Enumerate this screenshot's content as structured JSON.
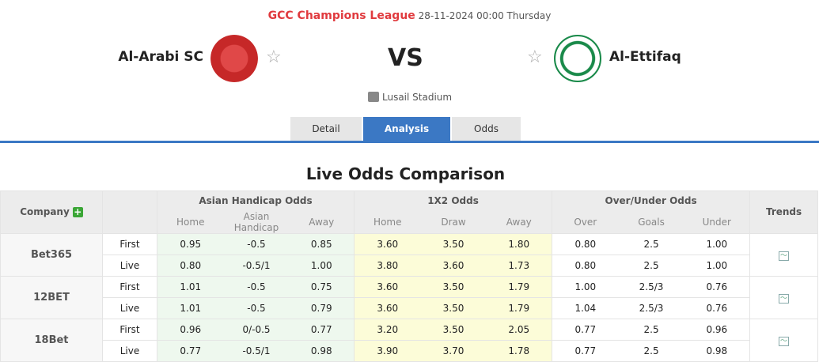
{
  "match": {
    "league": "GCC Champions League",
    "datetime": "28-11-2024 00:00 Thursday",
    "home": "Al-Arabi SC",
    "away": "Al-Ettifaq",
    "vs": "VS",
    "venue": "Lusail Stadium",
    "home_color": "#d32f2f",
    "away_color": "#1a8a4a"
  },
  "tabs": [
    {
      "label": "Detail"
    },
    {
      "label": "Analysis",
      "active": true
    },
    {
      "label": "Odds"
    }
  ],
  "section_title": "Live Odds Comparison",
  "table": {
    "company": "Company",
    "trends": "Trends",
    "groups": [
      "Asian Handicap Odds",
      "1X2 Odds",
      "Over/Under Odds"
    ],
    "subheaders": [
      "Home",
      "Asian Handicap",
      "Away",
      "Home",
      "Draw",
      "Away",
      "Over",
      "Goals",
      "Under"
    ],
    "rows": [
      {
        "company": "Bet365",
        "lines": [
          {
            "type": "First",
            "v": [
              "0.95",
              "-0.5",
              "0.85",
              "3.60",
              "3.50",
              "1.80",
              "0.80",
              "2.5",
              "1.00"
            ]
          },
          {
            "type": "Live",
            "v": [
              "0.80",
              "-0.5/1",
              "1.00",
              "3.80",
              "3.60",
              "1.73",
              "0.80",
              "2.5",
              "1.00"
            ]
          }
        ]
      },
      {
        "company": "12BET",
        "lines": [
          {
            "type": "First",
            "v": [
              "1.01",
              "-0.5",
              "0.75",
              "3.60",
              "3.50",
              "1.79",
              "1.00",
              "2.5/3",
              "0.76"
            ]
          },
          {
            "type": "Live",
            "v": [
              "1.01",
              "-0.5",
              "0.79",
              "3.60",
              "3.50",
              "1.79",
              "1.04",
              "2.5/3",
              "0.76"
            ]
          }
        ]
      },
      {
        "company": "18Bet",
        "lines": [
          {
            "type": "First",
            "v": [
              "0.96",
              "0/-0.5",
              "0.77",
              "3.20",
              "3.50",
              "2.05",
              "0.77",
              "2.5",
              "0.96"
            ]
          },
          {
            "type": "Live",
            "v": [
              "0.77",
              "-0.5/1",
              "0.98",
              "3.90",
              "3.70",
              "1.78",
              "0.77",
              "2.5",
              "0.98"
            ]
          }
        ]
      }
    ]
  }
}
